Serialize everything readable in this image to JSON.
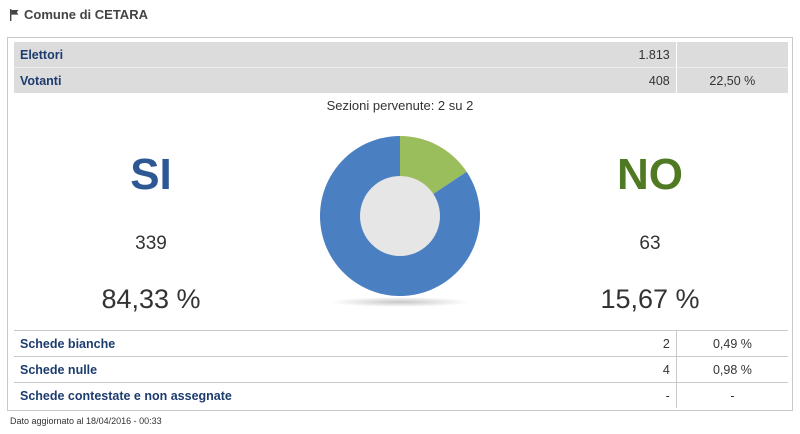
{
  "page": {
    "title": "Comune di CETARA",
    "icon": "flag-icon"
  },
  "summary": {
    "elettori": {
      "label": "Elettori",
      "value": "1.813"
    },
    "votanti": {
      "label": "Votanti",
      "value": "408",
      "percent": "22,50 %"
    }
  },
  "sezioni": "Sezioni pervenute: 2 su 2",
  "results": {
    "si": {
      "label": "SI",
      "count": "339",
      "percent": "84,33 %",
      "color": "#4a7fc1"
    },
    "no": {
      "label": "NO",
      "count": "63",
      "percent": "15,67 %",
      "color": "#9bbe5c"
    }
  },
  "chart_data": {
    "type": "pie",
    "donut": true,
    "categories": [
      "NO",
      "SI"
    ],
    "values": [
      63,
      339
    ],
    "colors": [
      "#9bbe5c",
      "#4a7fc1"
    ]
  },
  "extra": {
    "rows": [
      {
        "label": "Schede bianche",
        "value": "2",
        "percent": "0,49 %"
      },
      {
        "label": "Schede nulle",
        "value": "4",
        "percent": "0,98 %"
      },
      {
        "label": "Schede contestate e non assegnate",
        "value": "-",
        "percent": "-"
      }
    ]
  },
  "footer": "Dato aggiornato al 18/04/2016 - 00:33"
}
